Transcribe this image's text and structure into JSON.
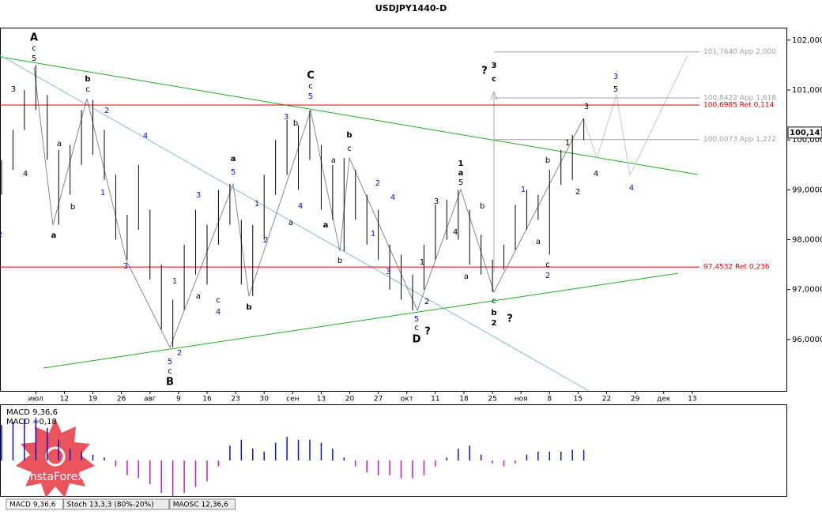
{
  "chart_data": [
    {
      "type": "ohlc",
      "title": "USDJPY1440-D",
      "x": [
        0,
        2,
        4,
        6,
        8,
        10,
        12,
        14,
        16,
        18,
        20,
        22,
        24,
        26,
        28,
        30,
        32,
        34,
        36,
        38,
        40,
        42,
        44,
        46,
        48,
        50,
        52,
        54,
        56,
        58,
        60,
        62,
        64,
        66,
        68,
        70,
        72,
        74,
        76,
        78,
        80,
        82,
        84,
        86,
        88,
        90,
        92,
        94,
        96,
        98,
        100,
        102
      ],
      "high": [
        99.6,
        100.2,
        101.0,
        101.5,
        100.9,
        99.8,
        99.9,
        100.6,
        100.8,
        100.2,
        99.3,
        98.5,
        99.5,
        98.6,
        97.5,
        96.8,
        97.9,
        98.6,
        98.3,
        99.0,
        99.12,
        98.4,
        98.3,
        99.3,
        100.0,
        100.4,
        100.3,
        100.59,
        99.9,
        99.5,
        99.64,
        99.4,
        98.9,
        98.6,
        97.9,
        97.7,
        97.3,
        97.9,
        98.7,
        98.8,
        99.0,
        98.6,
        98.1,
        97.6,
        97.9,
        98.7,
        99.0,
        98.9,
        99.4,
        99.8,
        100.1,
        100.43
      ],
      "low": [
        98.9,
        99.4,
        100.2,
        100.6,
        99.6,
        98.3,
        98.9,
        99.5,
        99.7,
        99.2,
        98.0,
        97.6,
        98.2,
        97.2,
        96.2,
        95.84,
        96.6,
        97.3,
        97.1,
        97.9,
        98.3,
        97.1,
        96.87,
        98.0,
        98.9,
        99.3,
        99.0,
        99.6,
        98.6,
        98.4,
        97.77,
        98.4,
        97.9,
        97.6,
        97.0,
        96.8,
        96.58,
        97.0,
        97.6,
        98.0,
        98.0,
        97.5,
        97.3,
        96.95,
        97.4,
        97.8,
        98.2,
        98.4,
        97.7,
        99.1,
        99.2,
        100.0
      ],
      "color": "#000000",
      "xlim": [
        0,
        137.5
      ],
      "xticks": [
        {
          "value": 6,
          "label": "июл"
        },
        {
          "value": 11,
          "label": "12"
        },
        {
          "value": 16,
          "label": "19"
        },
        {
          "value": 21,
          "label": "26"
        },
        {
          "value": 26,
          "label": "авг"
        },
        {
          "value": 31,
          "label": "9"
        },
        {
          "value": 36,
          "label": "16"
        },
        {
          "value": 41,
          "label": "23"
        },
        {
          "value": 46,
          "label": "30"
        },
        {
          "value": 51,
          "label": "сен"
        },
        {
          "value": 56,
          "label": "13"
        },
        {
          "value": 61,
          "label": "20"
        },
        {
          "value": 66,
          "label": "27"
        },
        {
          "value": 71,
          "label": "окт"
        },
        {
          "value": 76,
          "label": "11"
        },
        {
          "value": 81,
          "label": "18"
        },
        {
          "value": 86,
          "label": "25"
        },
        {
          "value": 91,
          "label": "ноя"
        },
        {
          "value": 96,
          "label": "8"
        },
        {
          "value": 101,
          "label": "15"
        },
        {
          "value": 106,
          "label": "22"
        },
        {
          "value": 111,
          "label": "29"
        },
        {
          "value": 116,
          "label": "дек"
        },
        {
          "value": 121,
          "label": "13"
        }
      ],
      "ylim": [
        94.97,
        102.25
      ],
      "yticks": [
        {
          "value": 96,
          "label": "96,0000"
        },
        {
          "value": 97,
          "label": "97,0000"
        },
        {
          "value": 98,
          "label": "98,0000"
        },
        {
          "value": 99,
          "label": "99,0000"
        },
        {
          "value": 100,
          "label": "100,0000"
        },
        {
          "value": 101,
          "label": "101,0000"
        },
        {
          "value": 102,
          "label": "102,0000"
        }
      ],
      "levels": [
        {
          "value": 101.764,
          "label": "101,7640 App 2,000",
          "color": "#a0a0a0"
        },
        {
          "value": 100.8422,
          "label": "100,8422 App 1,618",
          "color": "#a0a0a0"
        },
        {
          "value": 100.6985,
          "label": "100,6985 Ret 0,114",
          "color": "#dd0000"
        },
        {
          "value": 100.0073,
          "label": "100,0073 App 1,272",
          "color": "#a0a0a0"
        },
        {
          "value": 97.4532,
          "label": "97,4532 Ret 0,236",
          "color": "#dd0000"
        }
      ],
      "last_price": {
        "value": 100.147,
        "label": "100,147"
      },
      "wave_labels": [
        "A",
        "c",
        "5",
        "3",
        "4",
        "2",
        "a",
        "a",
        "b",
        "b",
        "c",
        "2",
        "1",
        "4",
        "3",
        "5",
        "c",
        "B",
        "2",
        "1",
        "3",
        "c",
        "4",
        "a",
        "b",
        "a",
        "5",
        "1",
        "2",
        "a",
        "3",
        "b",
        "4",
        "C",
        "c",
        "5",
        "a",
        "b",
        "c",
        "a",
        "b",
        "2",
        "4",
        "1",
        "3",
        "1",
        "2",
        "5",
        "c",
        "D",
        "?",
        "3",
        "1",
        "a",
        "5",
        "4",
        "b",
        "a",
        "c",
        "b",
        "2",
        "?",
        "?",
        "3",
        "c",
        "1",
        "a",
        "b",
        "c",
        "2",
        "1",
        "2",
        "3",
        "4",
        "3",
        "5",
        "4"
      ]
    },
    {
      "type": "histogram",
      "title": "MACD 9,36,6",
      "current": "MACD =0,18",
      "x": [
        0,
        2,
        4,
        6,
        8,
        10,
        12,
        14,
        16,
        18,
        20,
        22,
        24,
        26,
        28,
        30,
        32,
        34,
        36,
        38,
        40,
        42,
        44,
        46,
        48,
        50,
        52,
        54,
        56,
        58,
        60,
        62,
        64,
        66,
        68,
        70,
        72,
        74,
        76,
        78,
        80,
        82,
        84,
        86,
        88,
        90,
        92,
        94,
        96,
        98,
        100,
        102
      ],
      "values": [
        0.6,
        0.65,
        0.7,
        0.72,
        0.55,
        0.35,
        0.2,
        0.15,
        0.1,
        0.05,
        -0.1,
        -0.25,
        -0.3,
        -0.4,
        -0.55,
        -0.6,
        -0.55,
        -0.45,
        -0.35,
        -0.1,
        0.25,
        0.35,
        0.2,
        0.15,
        0.3,
        0.4,
        0.35,
        0.35,
        0.3,
        0.2,
        0.05,
        -0.1,
        -0.2,
        -0.25,
        -0.25,
        -0.3,
        -0.3,
        -0.25,
        -0.1,
        0.05,
        0.2,
        0.25,
        0.1,
        -0.05,
        -0.1,
        -0.05,
        0.1,
        0.15,
        0.15,
        0.15,
        0.18,
        0.18
      ],
      "ylim": [
        -0.6,
        0.95
      ],
      "positive_color": "#1010cc",
      "negative_color": "#cc10cc"
    }
  ],
  "tabs": [
    "MACD 9,36,6",
    "Stoch 13,3,3 (80%-20%)",
    "MAOSC 12,36,6"
  ],
  "logo": "InstaForex"
}
